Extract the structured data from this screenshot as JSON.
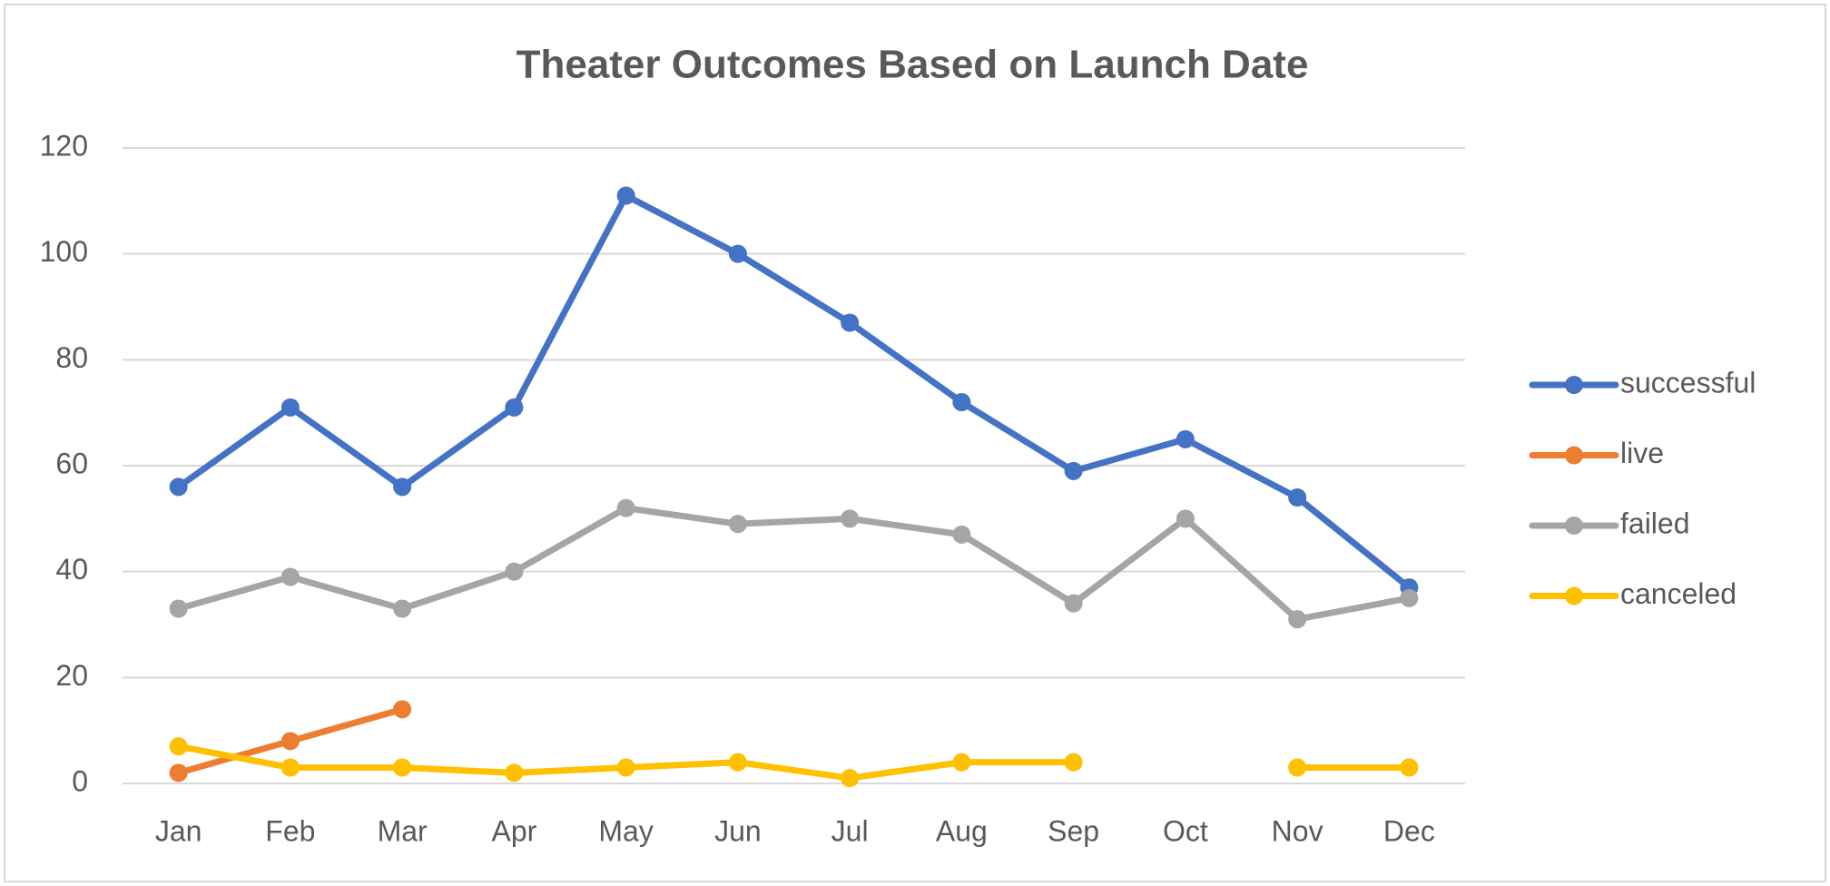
{
  "chart_data": {
    "type": "line",
    "title": "Theater Outcomes Based on Launch Date",
    "categories": [
      "Jan",
      "Feb",
      "Mar",
      "Apr",
      "May",
      "Jun",
      "Jul",
      "Aug",
      "Sep",
      "Oct",
      "Nov",
      "Dec"
    ],
    "series": [
      {
        "name": "successful",
        "color": "#4472c4",
        "values": [
          56,
          71,
          56,
          71,
          111,
          100,
          87,
          72,
          59,
          65,
          54,
          37
        ]
      },
      {
        "name": "live",
        "color": "#ed7d31",
        "values": [
          2,
          8,
          14,
          null,
          null,
          null,
          null,
          null,
          null,
          null,
          null,
          null
        ]
      },
      {
        "name": "failed",
        "color": "#a5a5a5",
        "values": [
          33,
          39,
          33,
          40,
          52,
          49,
          50,
          47,
          34,
          50,
          31,
          35
        ]
      },
      {
        "name": "canceled",
        "color": "#ffc000",
        "values": [
          7,
          3,
          3,
          2,
          3,
          4,
          1,
          4,
          4,
          null,
          3,
          3
        ]
      }
    ],
    "ylim": [
      0,
      120
    ],
    "yticks": [
      0,
      20,
      40,
      60,
      80,
      100,
      120
    ],
    "grid": true,
    "legend": "right"
  }
}
